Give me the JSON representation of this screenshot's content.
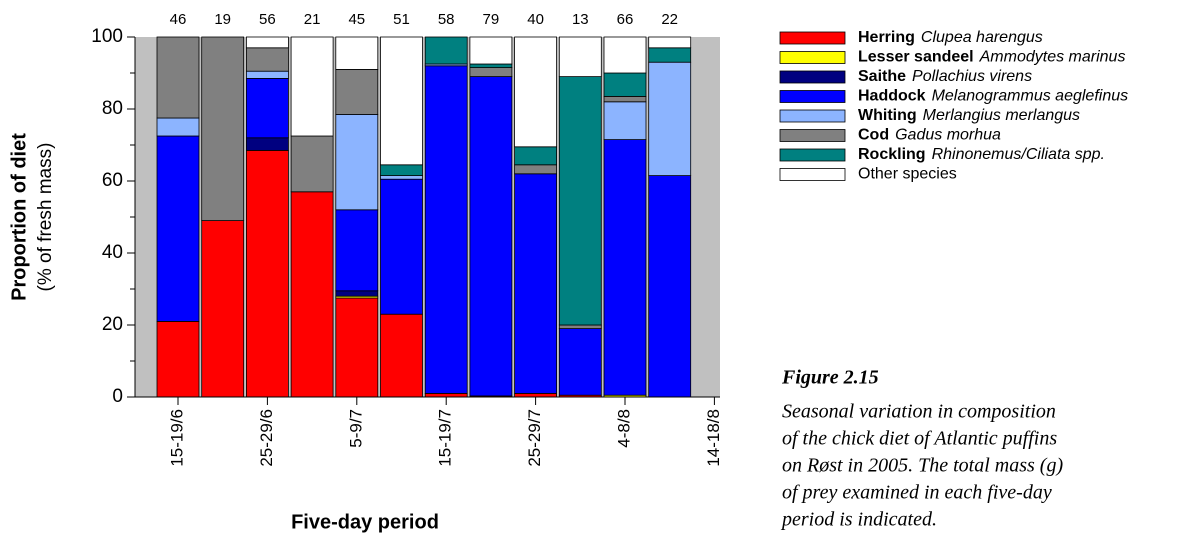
{
  "chart_data": {
    "type": "stacked_bar",
    "ylabel": "Proportion of diet",
    "ylabel_sub": "(% of fresh mass)",
    "xlabel": "Five-day period",
    "categories": [
      "15-19/6",
      null,
      "25-29/6",
      null,
      "5-9/7",
      null,
      "15-19/7",
      null,
      "25-29/7",
      null,
      "4-8/8",
      null,
      "14-18/8"
    ],
    "top_labels": [
      46,
      19,
      56,
      21,
      45,
      51,
      58,
      79,
      40,
      13,
      66,
      22,
      null
    ],
    "ylim": [
      0,
      100
    ],
    "yticks": [
      0,
      20,
      40,
      60,
      80,
      100
    ],
    "yminorticks": [
      10,
      30,
      50,
      70,
      90
    ],
    "background": "#c0c0c0",
    "series": [
      {
        "name": "Herring",
        "species": "Clupea harengus",
        "color": "#ff0000",
        "values": [
          21,
          49,
          68.5,
          57,
          27.5,
          23,
          1,
          0.3,
          1,
          0.5,
          0,
          0,
          null
        ]
      },
      {
        "name": "Lesser sandeel",
        "species": "Ammodytes marinus",
        "color": "#ffff00",
        "values": [
          0,
          0,
          0,
          0,
          0.5,
          0,
          0,
          0,
          0,
          0,
          0.5,
          0,
          null
        ]
      },
      {
        "name": "Saithe",
        "species": "Pollachius virens",
        "color": "#000080",
        "values": [
          0,
          0,
          3.5,
          0,
          1.5,
          0,
          0,
          0,
          0,
          0,
          0,
          0,
          null
        ]
      },
      {
        "name": "Haddock",
        "species": "Melanogrammus aeglefinus",
        "color": "#0000ff",
        "values": [
          51.5,
          0,
          16.5,
          0,
          22.5,
          37.5,
          91,
          88.7,
          61,
          18.5,
          71,
          61.5,
          null
        ]
      },
      {
        "name": "Whiting",
        "species": "Merlangius merlangus",
        "color": "#8cb4ff",
        "values": [
          5,
          0,
          2,
          0,
          26.5,
          1,
          0.5,
          0,
          0,
          0,
          10.5,
          31.5,
          null
        ]
      },
      {
        "name": "Cod",
        "species": "Gadus morhua",
        "color": "#808080",
        "values": [
          22.5,
          51,
          6.5,
          15.5,
          12.5,
          0,
          0,
          2.5,
          2.5,
          1,
          1.5,
          0,
          null
        ]
      },
      {
        "name": "Rockling",
        "species": "Rhinonemus/Ciliata spp.",
        "color": "#008080",
        "values": [
          0,
          0,
          0,
          0,
          0,
          3,
          7.5,
          1,
          5,
          69,
          6.5,
          4,
          null
        ]
      },
      {
        "name": "Other species",
        "color": "#ffffff",
        "values": [
          0,
          0,
          3,
          27.5,
          9,
          35.5,
          0,
          7.5,
          30.5,
          11,
          10,
          3,
          null
        ]
      }
    ]
  },
  "caption": {
    "label": "Figure 2.15",
    "lines": [
      "Seasonal variation in composition",
      "of the chick diet of Atlantic puffins",
      "on Røst in 2005. The total mass (g)",
      "of prey examined in each five-day",
      "period is indicated."
    ]
  }
}
